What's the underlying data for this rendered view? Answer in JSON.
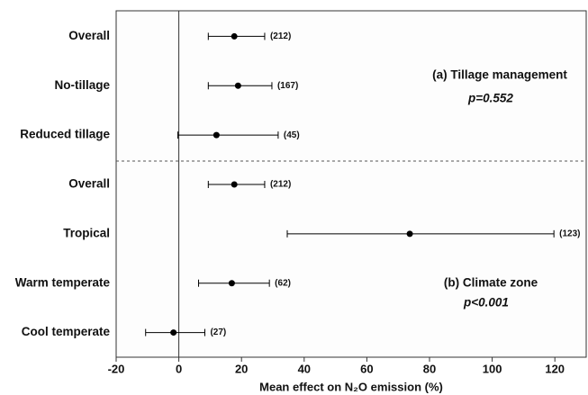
{
  "chart_data": {
    "type": "forest",
    "categories": [
      "Overall",
      "No-tillage",
      "Reduced tillage",
      "Overall",
      "Tropical",
      "Warm temperate",
      "Cool temperate"
    ],
    "values": [
      17.7,
      18.9,
      12.0,
      17.7,
      73.7,
      16.9,
      -1.7
    ],
    "lower": [
      9.4,
      9.4,
      -0.3,
      9.4,
      34.6,
      6.3,
      -10.6
    ],
    "upper": [
      27.4,
      29.7,
      31.7,
      27.4,
      119.7,
      28.9,
      8.3
    ],
    "n_labels": [
      "(212)",
      "(167)",
      "(45)",
      "(212)",
      "(123)",
      "(62)",
      "(27)"
    ],
    "color": "#000000",
    "xlabel": "Mean effect on N₂O emission (%)",
    "xlim": [
      -20,
      130
    ],
    "xticks": [
      -20,
      0,
      20,
      40,
      60,
      80,
      100,
      120
    ],
    "annotations": [
      "(a) Tillage management",
      "p=0.552",
      "(b) Climate zone",
      "p<0.001"
    ]
  }
}
